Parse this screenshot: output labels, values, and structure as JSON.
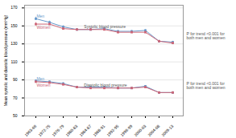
{
  "chart_data": {
    "type": "line",
    "categories": [
      "1963-66",
      "1972-75",
      "1976-79",
      "1980-83",
      "1984-87",
      "1988-91",
      "1992-95",
      "1996-99",
      "2000-03",
      "2004-08",
      "2009-13"
    ],
    "series": [
      {
        "color": "#6699CC",
        "marker": "square",
        "values": [
          158,
          154,
          149,
          146,
          146,
          147,
          144,
          144,
          145,
          133,
          132
        ],
        "errors": [
          1.8,
          1.4,
          1.2,
          1.0,
          1.0,
          1.0,
          1.0,
          1.0,
          1.0,
          1.0,
          1.0
        ]
      },
      {
        "color": "#CC6677",
        "marker": "square",
        "values": [
          152,
          152,
          147,
          146,
          146,
          146,
          143,
          143,
          143,
          133,
          131
        ],
        "errors": [
          1.8,
          1.4,
          1.2,
          1.0,
          1.0,
          1.0,
          1.0,
          1.0,
          1.0,
          1.0,
          1.0
        ]
      },
      {
        "color": "#6699CC",
        "marker": "square",
        "values": [
          89,
          88,
          86,
          82,
          82,
          82,
          81,
          81,
          83,
          76,
          76
        ],
        "errors": [
          1.2,
          1.0,
          1.0,
          0.8,
          0.8,
          0.8,
          0.8,
          0.8,
          0.8,
          0.8,
          0.8
        ]
      },
      {
        "color": "#CC6677",
        "marker": "square",
        "values": [
          88,
          87,
          85,
          82,
          81,
          81,
          81,
          81,
          82,
          76,
          76
        ],
        "errors": [
          1.2,
          1.0,
          1.0,
          0.8,
          0.8,
          0.8,
          0.8,
          0.8,
          0.8,
          0.8,
          0.8
        ]
      }
    ],
    "ylabel": "Mean systolic and diastolic blood pressure (mmHg)",
    "ylim": [
      50,
      173
    ],
    "yticks": [
      50,
      70,
      90,
      110,
      130,
      150,
      170
    ],
    "grid": true,
    "annotations": [
      {
        "text": "Men",
        "x": "1963-66",
        "y": 159,
        "color": "#6699CC"
      },
      {
        "text": "Women",
        "x": "1963-66",
        "y": 150,
        "color": "#CC6677"
      },
      {
        "text": "Systolic blood pressure",
        "x": "1980-83",
        "y": 149,
        "color": "#555555"
      },
      {
        "text": "Men",
        "x": "1963-66",
        "y": 90,
        "color": "#6699CC"
      },
      {
        "text": "Women",
        "x": "1963-66",
        "y": 86,
        "color": "#CC6677"
      },
      {
        "text": "Diastolic blood pressure",
        "x": "1980-83",
        "y": 84,
        "color": "#555555"
      },
      {
        "text": "P for trend <0.001 for\nboth men and women",
        "color": "#555555"
      },
      {
        "text": "P for trend <0.001 for\nboth men and women",
        "color": "#555555"
      }
    ]
  }
}
